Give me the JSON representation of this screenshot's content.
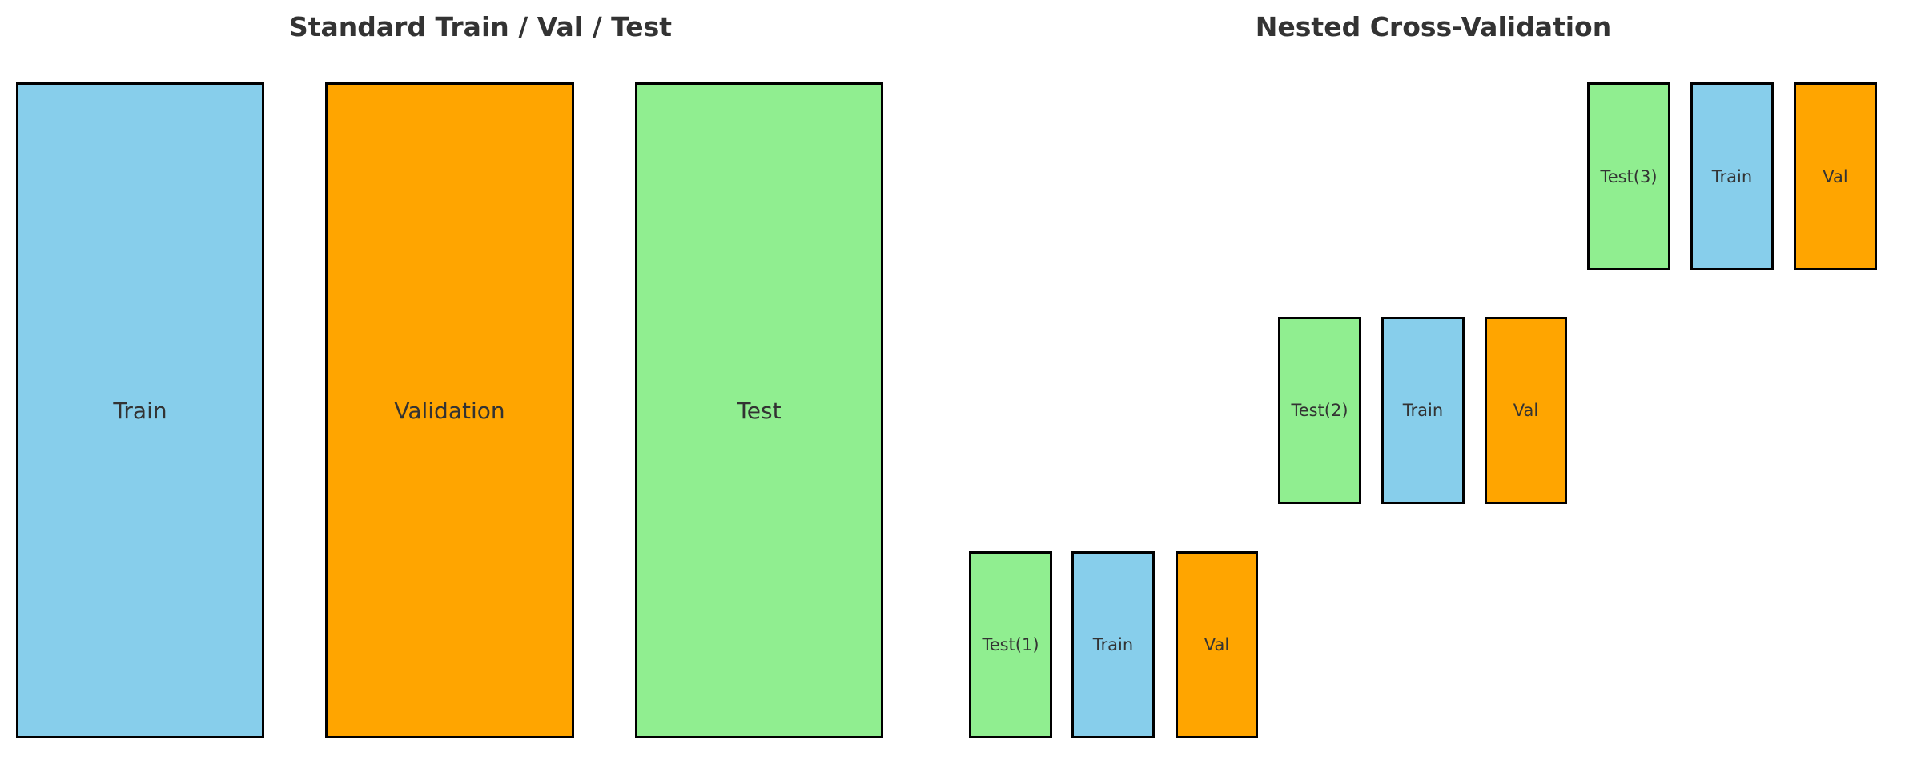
{
  "colors": {
    "train": "#87CEEB",
    "validation": "#FFA500",
    "test": "#90EE90",
    "border": "#000000",
    "text": "#333333"
  },
  "standard": {
    "title": "Standard Train / Val / Test",
    "blocks": [
      {
        "label": "Train",
        "role": "train"
      },
      {
        "label": "Validation",
        "role": "validation"
      },
      {
        "label": "Test",
        "role": "test"
      }
    ]
  },
  "nested": {
    "title": "Nested Cross-Validation",
    "folds": [
      {
        "blocks": [
          {
            "label": "Test(1)",
            "role": "test"
          },
          {
            "label": "Train",
            "role": "train"
          },
          {
            "label": "Val",
            "role": "validation"
          }
        ]
      },
      {
        "blocks": [
          {
            "label": "Test(2)",
            "role": "test"
          },
          {
            "label": "Train",
            "role": "train"
          },
          {
            "label": "Val",
            "role": "validation"
          }
        ]
      },
      {
        "blocks": [
          {
            "label": "Test(3)",
            "role": "test"
          },
          {
            "label": "Train",
            "role": "train"
          },
          {
            "label": "Val",
            "role": "validation"
          }
        ]
      }
    ]
  }
}
